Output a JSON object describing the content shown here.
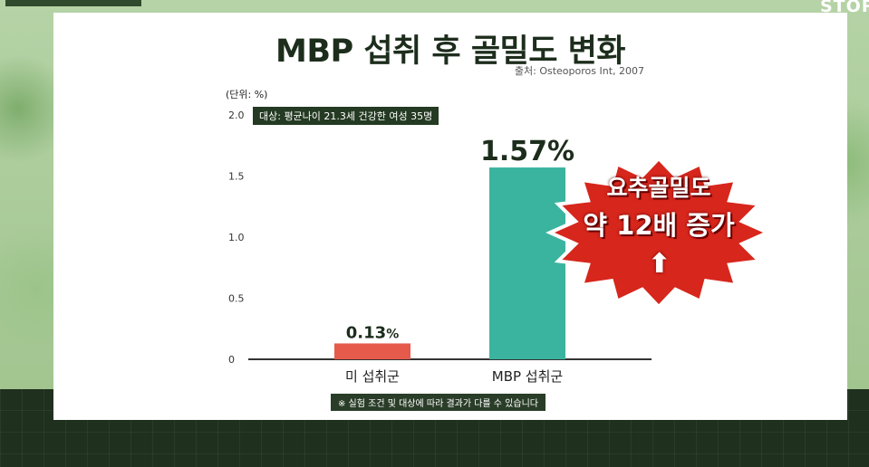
{
  "overlay": {
    "brand_text": "STOP"
  },
  "header": {
    "title": "MBP 섭취 후 골밀도 변화",
    "source": "출처: Osteoporos Int, 2007"
  },
  "chart_meta": {
    "unit": "(단위: %)",
    "subject": "대상: 평균나이 21.3세 건강한 여성 35명",
    "note": "※ 실험 조건 및 대상에 따라 결과가 다를 수 있습니다"
  },
  "callout": {
    "line1": "요추골밀도",
    "line2": "약 12배 증가",
    "icon": "up-arrow-icon",
    "color": "#d7261c"
  },
  "chart_data": {
    "type": "bar",
    "title": "MBP 섭취 후 골밀도 변화",
    "categories": [
      "미 섭취군",
      "MBP 섭취군"
    ],
    "values": [
      0.13,
      1.57
    ],
    "value_labels": [
      "0.13%",
      "1.57%"
    ],
    "bar_colors": [
      "#e55a4b",
      "#3bb49f"
    ],
    "ylim": [
      0,
      2.0
    ],
    "yticks": [
      0,
      0.5,
      1.0,
      1.5,
      2.0
    ],
    "ytick_labels": [
      "0",
      "0.5",
      "1.0",
      "1.5",
      "2.0"
    ],
    "ylabel": "(단위: %)",
    "grid": false,
    "legend": "none"
  }
}
